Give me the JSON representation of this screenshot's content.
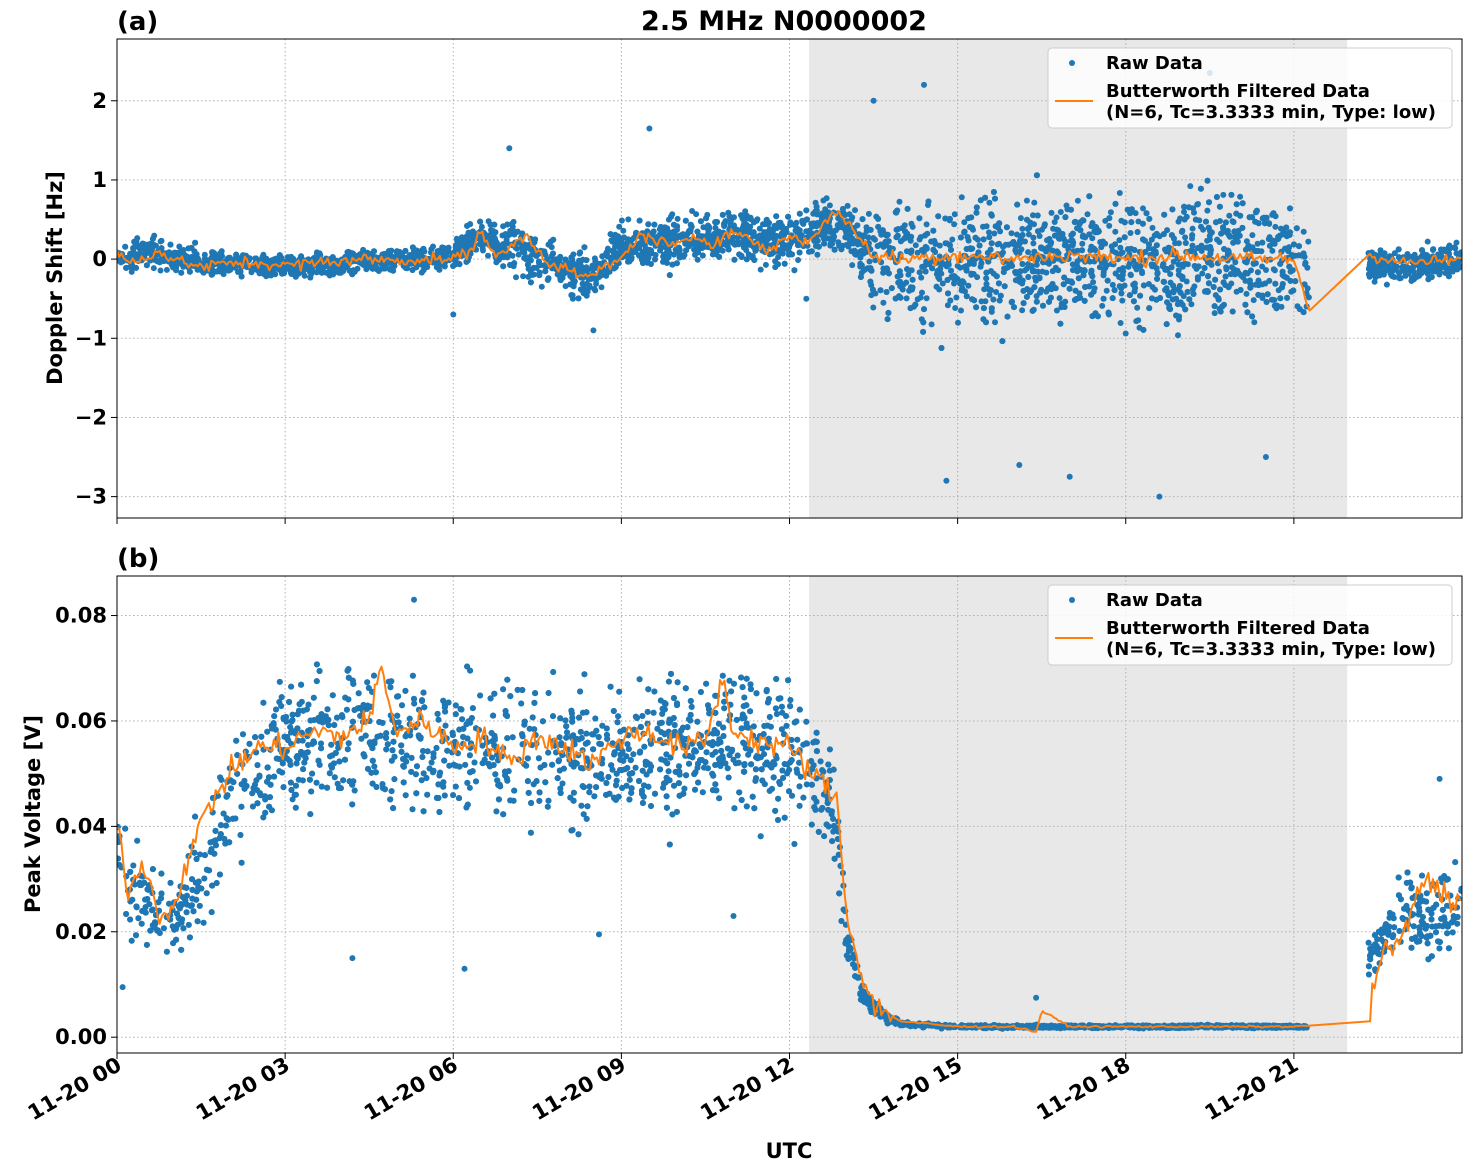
{
  "figure_title": "2.5 MHz N0000002",
  "xlabel": "UTC",
  "colors": {
    "raw": "#1f77b4",
    "filtered": "#ff7f0e",
    "shade": "#e8e8e8",
    "grid": "#b0b0b0"
  },
  "chart_data": [
    {
      "type": "scatter",
      "panel_label": "(a)",
      "ylabel": "Doppler Shift [Hz]",
      "xlim_hours": [
        0,
        24
      ],
      "ylim": [
        -3.27,
        2.78
      ],
      "yticks": [
        -3,
        -2,
        -1,
        0,
        1,
        2
      ],
      "ytick_labels": [
        "−3",
        "−2",
        "−1",
        "0",
        "1",
        "2"
      ],
      "xticks_hours": [
        0,
        3,
        6,
        9,
        12,
        15,
        18,
        21
      ],
      "xtick_labels": [
        "11-20 00",
        "11-20 03",
        "11-20 06",
        "11-20 09",
        "11-20 12",
        "11-20 15",
        "11-20 18",
        "11-20 21"
      ],
      "grid": true,
      "legend_position": "top-right",
      "shaded_interval_hours": [
        12.35,
        21.95
      ],
      "data_gap_hours": [
        21.28,
        22.33
      ],
      "series": [
        {
          "name": "Raw Data",
          "kind": "points",
          "envelope": {
            "x_hours": [
              0,
              0.5,
              1,
              2,
              3,
              4,
              5,
              6,
              6.5,
              7,
              8,
              8.5,
              9,
              9.5,
              10,
              11,
              12,
              12.3,
              12.6,
              13,
              13.3,
              13.7,
              14,
              15,
              16,
              17,
              18,
              19,
              20,
              21,
              21.28,
              22.33,
              23,
              24
            ],
            "center": [
              0.0,
              0.1,
              0.0,
              -0.05,
              -0.1,
              -0.05,
              0.0,
              0.05,
              0.3,
              0.15,
              -0.15,
              -0.2,
              0.2,
              0.2,
              0.25,
              0.3,
              0.2,
              0.35,
              0.45,
              0.4,
              0.1,
              0.0,
              0.0,
              0.0,
              0.0,
              0.0,
              0.0,
              0.0,
              0.0,
              0.0,
              -0.3,
              -0.05,
              -0.1,
              0.0
            ],
            "spread": [
              0.3,
              0.35,
              0.3,
              0.25,
              0.25,
              0.25,
              0.25,
              0.3,
              0.45,
              0.5,
              0.45,
              0.5,
              0.5,
              0.5,
              0.5,
              0.5,
              0.5,
              0.6,
              0.55,
              0.6,
              0.9,
              1.2,
              1.3,
              1.35,
              1.35,
              1.35,
              1.35,
              1.35,
              1.35,
              1.3,
              1.1,
              0.35,
              0.35,
              0.35
            ]
          },
          "extremes": [
            [
              6.0,
              -0.7
            ],
            [
              7.0,
              1.4
            ],
            [
              8.5,
              -0.9
            ],
            [
              9.5,
              1.65
            ],
            [
              12.3,
              -0.5
            ],
            [
              13.5,
              2.0
            ],
            [
              14.4,
              2.2
            ],
            [
              14.8,
              -2.8
            ],
            [
              16.1,
              -2.6
            ],
            [
              17.0,
              -2.75
            ],
            [
              18.6,
              -3.0
            ],
            [
              19.5,
              2.35
            ],
            [
              20.5,
              -2.5
            ]
          ]
        },
        {
          "name": "Butterworth Filtered Data\n(N=6, Tc=3.3333 min, Type: low)",
          "kind": "line",
          "x_hours": [
            0,
            0.3,
            0.7,
            1,
            1.5,
            2,
            2.5,
            3,
            3.5,
            4,
            4.5,
            5,
            5.5,
            6,
            6.3,
            6.5,
            6.8,
            7.0,
            7.3,
            7.7,
            8.0,
            8.3,
            8.6,
            9.0,
            9.3,
            9.6,
            10.0,
            10.3,
            10.6,
            11.0,
            11.3,
            11.6,
            12.0,
            12.3,
            12.6,
            12.9,
            13.2,
            13.5,
            14,
            15,
            16,
            17,
            18,
            19,
            20,
            21,
            21.28,
            22.33,
            23,
            24
          ],
          "y": [
            0.05,
            -0.05,
            0.1,
            0.0,
            -0.1,
            -0.05,
            -0.05,
            -0.08,
            -0.05,
            -0.02,
            0.0,
            -0.02,
            0.0,
            0.0,
            0.1,
            0.35,
            0.0,
            0.15,
            0.3,
            -0.05,
            -0.1,
            -0.25,
            -0.15,
            0.0,
            0.3,
            0.25,
            0.15,
            0.3,
            0.2,
            0.35,
            0.25,
            0.1,
            0.3,
            0.2,
            0.45,
            0.6,
            0.3,
            0.05,
            0.0,
            0.05,
            0.0,
            0.05,
            0.0,
            0.05,
            0.0,
            0.0,
            -0.65,
            0.05,
            -0.05,
            0.0
          ],
          "jitter": 0.12
        }
      ]
    },
    {
      "type": "scatter",
      "panel_label": "(b)",
      "ylabel": "Peak Voltage [V]",
      "xlim_hours": [
        0,
        24
      ],
      "ylim": [
        -0.003,
        0.0875
      ],
      "yticks": [
        0.0,
        0.02,
        0.04,
        0.06,
        0.08
      ],
      "ytick_labels": [
        "0.00",
        "0.02",
        "0.04",
        "0.06",
        "0.08"
      ],
      "xticks_hours": [
        0,
        3,
        6,
        9,
        12,
        15,
        18,
        21
      ],
      "xtick_labels": [
        "11-20 00",
        "11-20 03",
        "11-20 06",
        "11-20 09",
        "11-20 12",
        "11-20 15",
        "11-20 18",
        "11-20 21"
      ],
      "grid": true,
      "legend_position": "top-right",
      "shaded_interval_hours": [
        12.35,
        21.95
      ],
      "data_gap_hours": [
        21.28,
        22.33
      ],
      "series": [
        {
          "name": "Raw Data",
          "kind": "points",
          "envelope": {
            "x_hours": [
              0,
              0.5,
              1,
              1.5,
              2,
              3,
              4,
              5,
              6,
              7,
              8,
              9,
              10,
              11,
              12,
              12.4,
              12.8,
              13.0,
              13.3,
              13.7,
              14.0,
              15,
              16,
              17,
              18,
              19,
              20,
              21,
              21.28,
              22.33,
              22.7,
              23,
              23.5,
              24
            ],
            "center": [
              0.035,
              0.025,
              0.022,
              0.03,
              0.045,
              0.055,
              0.058,
              0.057,
              0.056,
              0.055,
              0.053,
              0.055,
              0.056,
              0.057,
              0.053,
              0.05,
              0.045,
              0.02,
              0.008,
              0.004,
              0.0025,
              0.002,
              0.002,
              0.002,
              0.002,
              0.002,
              0.002,
              0.002,
              0.002,
              0.015,
              0.02,
              0.025,
              0.022,
              0.028
            ],
            "spread": [
              0.02,
              0.015,
              0.012,
              0.018,
              0.022,
              0.023,
              0.022,
              0.024,
              0.022,
              0.023,
              0.022,
              0.022,
              0.022,
              0.022,
              0.022,
              0.02,
              0.02,
              0.012,
              0.004,
              0.002,
              0.0008,
              0.0005,
              0.0005,
              0.0005,
              0.0005,
              0.0005,
              0.0005,
              0.0005,
              0.0005,
              0.008,
              0.01,
              0.014,
              0.014,
              0.016
            ]
          },
          "extremes": [
            [
              5.3,
              0.083
            ],
            [
              6.2,
              0.013
            ],
            [
              4.2,
              0.015
            ],
            [
              11.0,
              0.023
            ],
            [
              8.6,
              0.0195
            ],
            [
              16.4,
              0.0075
            ],
            [
              23.6,
              0.049
            ],
            [
              0.1,
              0.0095
            ]
          ]
        },
        {
          "name": "Butterworth Filtered Data\n(N=6, Tc=3.3333 min, Type: low)",
          "kind": "line",
          "x_hours": [
            0,
            0.2,
            0.5,
            0.8,
            1.0,
            1.3,
            1.6,
            2.0,
            2.5,
            3.0,
            3.5,
            4.0,
            4.5,
            4.7,
            5.0,
            5.5,
            6.0,
            6.5,
            7.0,
            7.5,
            8.0,
            8.5,
            9.0,
            9.5,
            10.0,
            10.5,
            10.8,
            11.0,
            11.5,
            12.0,
            12.4,
            12.7,
            12.85,
            13.0,
            13.2,
            13.5,
            14.0,
            15.0,
            16.0,
            16.4,
            16.5,
            17.0,
            18.0,
            19.0,
            20.0,
            21.0,
            21.28,
            22.33,
            22.5,
            23.0,
            23.3,
            23.6,
            24
          ],
          "y": [
            0.04,
            0.028,
            0.033,
            0.022,
            0.025,
            0.035,
            0.043,
            0.05,
            0.055,
            0.055,
            0.058,
            0.057,
            0.06,
            0.07,
            0.058,
            0.06,
            0.055,
            0.057,
            0.052,
            0.057,
            0.055,
            0.052,
            0.057,
            0.058,
            0.055,
            0.056,
            0.068,
            0.058,
            0.056,
            0.055,
            0.05,
            0.047,
            0.045,
            0.025,
            0.015,
            0.006,
            0.003,
            0.002,
            0.002,
            0.001,
            0.005,
            0.002,
            0.002,
            0.002,
            0.002,
            0.002,
            0.0022,
            0.003,
            0.014,
            0.02,
            0.03,
            0.028,
            0.025
          ],
          "jitter": 0.004
        }
      ]
    }
  ]
}
